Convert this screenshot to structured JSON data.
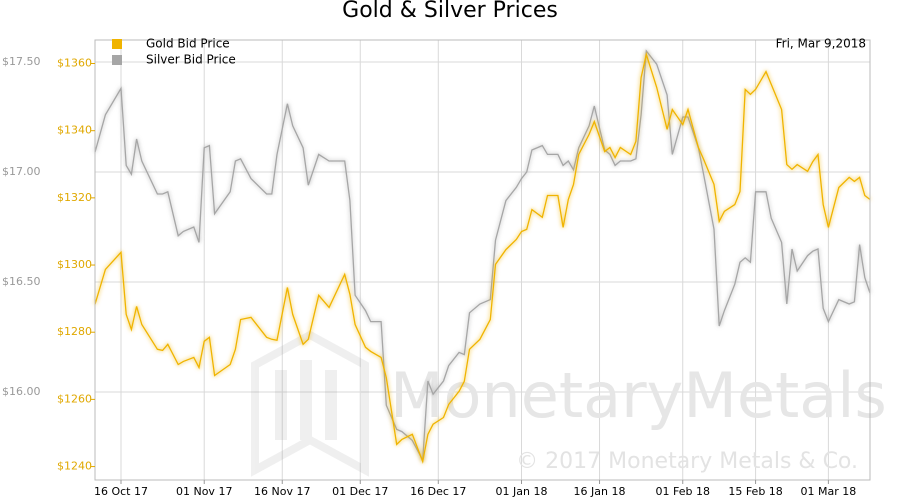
{
  "chart_data": {
    "type": "line",
    "title": "Gold & Silver Prices",
    "date_label": "Fri, Mar 9,2018",
    "watermark": "MonetaryMetals",
    "copyright": "© 2017 Monetary Metals & Co.",
    "grid": true,
    "legend": "top-left",
    "xlim": [
      "2017-10-11",
      "2018-03-09"
    ],
    "xticks": [
      {
        "value": "2017-10-16",
        "label": "16 Oct 17"
      },
      {
        "value": "2017-11-01",
        "label": "01 Nov 17"
      },
      {
        "value": "2017-11-16",
        "label": "16 Nov 17"
      },
      {
        "value": "2017-12-01",
        "label": "01 Dec 17"
      },
      {
        "value": "2017-12-16",
        "label": "16 Dec 17"
      },
      {
        "value": "2018-01-01",
        "label": "01 Jan 18"
      },
      {
        "value": "2018-01-16",
        "label": "16 Jan 18"
      },
      {
        "value": "2018-02-01",
        "label": "01 Feb 18"
      },
      {
        "value": "2018-02-15",
        "label": "15 Feb 18"
      },
      {
        "value": "2018-03-01",
        "label": "01 Mar 18"
      }
    ],
    "ylim": [
      15.6,
      17.6
    ],
    "yticks": [
      {
        "value": 16.0,
        "label": "$16.00"
      },
      {
        "value": 16.5,
        "label": "$16.50"
      },
      {
        "value": 17.0,
        "label": "$17.00"
      },
      {
        "value": 17.5,
        "label": "$17.50"
      }
    ],
    "y2lim": [
      1236,
      1367
    ],
    "y2ticks": [
      {
        "value": 1240,
        "label": "$1240"
      },
      {
        "value": 1260,
        "label": "$1260"
      },
      {
        "value": 1280,
        "label": "$1280"
      },
      {
        "value": 1300,
        "label": "$1300"
      },
      {
        "value": 1320,
        "label": "$1320"
      },
      {
        "value": 1340,
        "label": "$1340"
      },
      {
        "value": 1360,
        "label": "$1360"
      }
    ],
    "x": [
      "2017-10-11",
      "2017-10-13",
      "2017-10-16",
      "2017-10-17",
      "2017-10-18",
      "2017-10-19",
      "2017-10-20",
      "2017-10-23",
      "2017-10-24",
      "2017-10-25",
      "2017-10-27",
      "2017-10-28",
      "2017-10-30",
      "2017-10-31",
      "2017-11-01",
      "2017-11-02",
      "2017-11-03",
      "2017-11-06",
      "2017-11-07",
      "2017-11-08",
      "2017-11-10",
      "2017-11-13",
      "2017-11-14",
      "2017-11-15",
      "2017-11-17",
      "2017-11-18",
      "2017-11-20",
      "2017-11-21",
      "2017-11-23",
      "2017-11-25",
      "2017-11-28",
      "2017-11-29",
      "2017-11-30",
      "2017-12-02",
      "2017-12-03",
      "2017-12-05",
      "2017-12-06",
      "2017-12-08",
      "2017-12-09",
      "2017-12-11",
      "2017-12-13",
      "2017-12-14",
      "2017-12-15",
      "2017-12-17",
      "2017-12-18",
      "2017-12-20",
      "2017-12-21",
      "2017-12-22",
      "2017-12-24",
      "2017-12-26",
      "2017-12-27",
      "2017-12-29",
      "2017-12-31",
      "2018-01-01",
      "2018-01-02",
      "2018-01-03",
      "2018-01-05",
      "2018-01-06",
      "2018-01-08",
      "2018-01-09",
      "2018-01-10",
      "2018-01-11",
      "2018-01-12",
      "2018-01-14",
      "2018-01-15",
      "2018-01-17",
      "2018-01-18",
      "2018-01-19",
      "2018-01-20",
      "2018-01-22",
      "2018-01-23",
      "2018-01-24",
      "2018-01-25",
      "2018-01-27",
      "2018-01-29",
      "2018-01-30",
      "2018-02-01",
      "2018-02-02",
      "2018-02-04",
      "2018-02-05",
      "2018-02-07",
      "2018-02-08",
      "2018-02-09",
      "2018-02-11",
      "2018-02-12",
      "2018-02-13",
      "2018-02-14",
      "2018-02-15",
      "2018-02-17",
      "2018-02-18",
      "2018-02-20",
      "2018-02-21",
      "2018-02-22",
      "2018-02-23",
      "2018-02-25",
      "2018-02-26",
      "2018-02-27",
      "2018-02-28",
      "2018-03-01",
      "2018-03-03",
      "2018-03-05",
      "2018-03-06",
      "2018-03-07",
      "2018-03-08",
      "2018-03-09"
    ],
    "series": [
      {
        "name": "Gold Bid Price",
        "color": "#f0b400",
        "axis": "y2",
        "values": [
          1288.3,
          1298.7,
          1303.8,
          1285.3,
          1280.8,
          1287.7,
          1282.3,
          1274.9,
          1274.6,
          1276.4,
          1270.4,
          1271.3,
          1272.5,
          1269.5,
          1277.3,
          1278.5,
          1267.1,
          1270.4,
          1274.9,
          1283.8,
          1284.4,
          1278.5,
          1277.9,
          1277.6,
          1293.3,
          1285.3,
          1276.4,
          1277.9,
          1291.0,
          1287.4,
          1297.2,
          1291.3,
          1282.3,
          1275.5,
          1274.3,
          1272.5,
          1266.5,
          1246.6,
          1248.1,
          1249.6,
          1241.5,
          1249.6,
          1252.6,
          1254.6,
          1258.5,
          1262.4,
          1265.4,
          1274.9,
          1277.9,
          1283.8,
          1300.2,
          1304.6,
          1307.6,
          1310.0,
          1310.6,
          1316.5,
          1314.2,
          1320.7,
          1320.7,
          1311.2,
          1319.5,
          1324.0,
          1332.9,
          1338.9,
          1342.7,
          1333.8,
          1335.0,
          1332.0,
          1335.0,
          1332.9,
          1336.8,
          1355.8,
          1362.7,
          1352.9,
          1340.4,
          1346.3,
          1341.8,
          1346.3,
          1335.0,
          1331.5,
          1324.0,
          1313.0,
          1316.0,
          1318.0,
          1321.9,
          1352.3,
          1350.8,
          1352.3,
          1357.6,
          1353.8,
          1346.3,
          1329.9,
          1328.5,
          1329.9,
          1327.9,
          1330.8,
          1332.9,
          1318.0,
          1311.2,
          1323.1,
          1326.1,
          1324.9,
          1326.1,
          1320.7,
          1319.5
        ]
      },
      {
        "name": "Silver Bid Price",
        "color": "#a6a6a6",
        "axis": "y",
        "values": [
          17.09,
          17.26,
          17.38,
          17.03,
          16.99,
          17.15,
          17.05,
          16.9,
          16.9,
          16.91,
          16.71,
          16.73,
          16.75,
          16.68,
          17.11,
          17.12,
          16.81,
          16.91,
          17.05,
          17.06,
          16.97,
          16.9,
          16.9,
          17.08,
          17.31,
          17.21,
          17.11,
          16.94,
          17.08,
          17.05,
          17.05,
          16.87,
          16.44,
          16.37,
          16.32,
          16.32,
          15.94,
          15.83,
          15.82,
          15.78,
          15.69,
          16.05,
          15.99,
          16.05,
          16.12,
          16.18,
          16.17,
          16.36,
          16.4,
          16.42,
          16.69,
          16.87,
          16.93,
          16.97,
          17.0,
          17.1,
          17.12,
          17.08,
          17.08,
          17.03,
          17.05,
          17.01,
          17.11,
          17.21,
          17.3,
          17.1,
          17.08,
          17.03,
          17.05,
          17.05,
          17.06,
          17.26,
          17.55,
          17.49,
          17.35,
          17.08,
          17.25,
          17.25,
          17.11,
          16.99,
          16.74,
          16.3,
          16.37,
          16.49,
          16.59,
          16.61,
          16.59,
          16.91,
          16.91,
          16.79,
          16.68,
          16.4,
          16.65,
          16.55,
          16.62,
          16.64,
          16.65,
          16.38,
          16.32,
          16.42,
          16.4,
          16.41,
          16.67,
          16.52,
          16.45
        ]
      }
    ]
  }
}
